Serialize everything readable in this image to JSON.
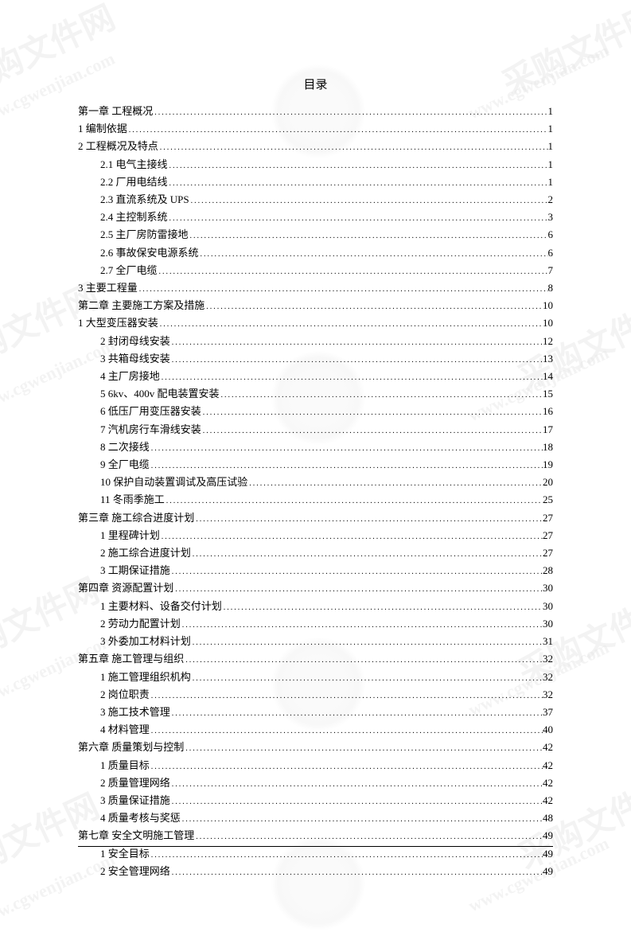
{
  "title": "目录",
  "watermark_text": "采购文件网",
  "watermark_url": "www.cgwenjian.com",
  "entries": [
    {
      "label": "第一章 工程概况",
      "page": "1",
      "indent": 0
    },
    {
      "label": "1 编制依据",
      "page": "1",
      "indent": 0
    },
    {
      "label": "2 工程概况及特点",
      "page": "1",
      "indent": 0
    },
    {
      "label": "2.1 电气主接线",
      "page": "1",
      "indent": 1
    },
    {
      "label": "2.2 厂用电结线",
      "page": "1",
      "indent": 1
    },
    {
      "label": "2.3 直流系统及 UPS",
      "page": "2",
      "indent": 1
    },
    {
      "label": "2.4 主控制系统",
      "page": "3",
      "indent": 1
    },
    {
      "label": "2.5 主厂房防雷接地",
      "page": "6",
      "indent": 1
    },
    {
      "label": "2.6 事故保安电源系统",
      "page": "6",
      "indent": 1
    },
    {
      "label": "2.7 全厂电缆",
      "page": "7",
      "indent": 1
    },
    {
      "label": "3 主要工程量",
      "page": "8",
      "indent": 0
    },
    {
      "label": "第二章  主要施工方案及措施",
      "page": "10",
      "indent": 0
    },
    {
      "label": "1 大型变压器安装",
      "page": "10",
      "indent": 0
    },
    {
      "label": "2 封闭母线安装",
      "page": "12",
      "indent": 1
    },
    {
      "label": "3 共箱母线安装",
      "page": "13",
      "indent": 1
    },
    {
      "label": "4 主厂房接地",
      "page": "14",
      "indent": 1
    },
    {
      "label": "5   6kv、400v 配电装置安装",
      "page": "15",
      "indent": 1
    },
    {
      "label": "6 低压厂用变压器安装",
      "page": "16",
      "indent": 1
    },
    {
      "label": "7 汽机房行车滑线安装",
      "page": "17",
      "indent": 1
    },
    {
      "label": "8 二次接线",
      "page": "18",
      "indent": 1
    },
    {
      "label": "9 全厂电缆",
      "page": "19",
      "indent": 1
    },
    {
      "label": "10 保护自动装置调试及高压试验",
      "page": "20",
      "indent": 1
    },
    {
      "label": "11 冬雨季施工",
      "page": "25",
      "indent": 1
    },
    {
      "label": "第三章  施工综合进度计划",
      "page": "27",
      "indent": 0
    },
    {
      "label": "1 里程碑计划",
      "page": "27",
      "indent": 1
    },
    {
      "label": "2 施工综合进度计划",
      "page": "27",
      "indent": 1
    },
    {
      "label": "3 工期保证措施",
      "page": "28",
      "indent": 1
    },
    {
      "label": "第四章  资源配置计划",
      "page": "30",
      "indent": 0
    },
    {
      "label": "1 主要材料、设备交付计划",
      "page": "30",
      "indent": 1
    },
    {
      "label": "2 劳动力配置计划",
      "page": "30",
      "indent": 1
    },
    {
      "label": "3 外委加工材料计划",
      "page": "31",
      "indent": 1
    },
    {
      "label": "第五章  施工管理与组织",
      "page": "32",
      "indent": 0
    },
    {
      "label": "1 施工管理组织机构",
      "page": "32",
      "indent": 1
    },
    {
      "label": "2 岗位职责",
      "page": "32",
      "indent": 1
    },
    {
      "label": "3 施工技术管理",
      "page": "37",
      "indent": 1
    },
    {
      "label": "4 材料管理",
      "page": "40",
      "indent": 1
    },
    {
      "label": "第六章 质量策划与控制",
      "page": "42",
      "indent": 0
    },
    {
      "label": "1 质量目标",
      "page": "42",
      "indent": 1
    },
    {
      "label": "2 质量管理网络",
      "page": "42",
      "indent": 1
    },
    {
      "label": "3 质量保证措施",
      "page": "42",
      "indent": 1
    },
    {
      "label": "4 质量考核与奖惩",
      "page": "48",
      "indent": 1
    },
    {
      "label": "第七章 安全文明施工管理",
      "page": "49",
      "indent": 0
    },
    {
      "label": "1 安全目标",
      "page": "49",
      "indent": 1
    },
    {
      "label": "2 安全管理网络",
      "page": "49",
      "indent": 1
    }
  ]
}
